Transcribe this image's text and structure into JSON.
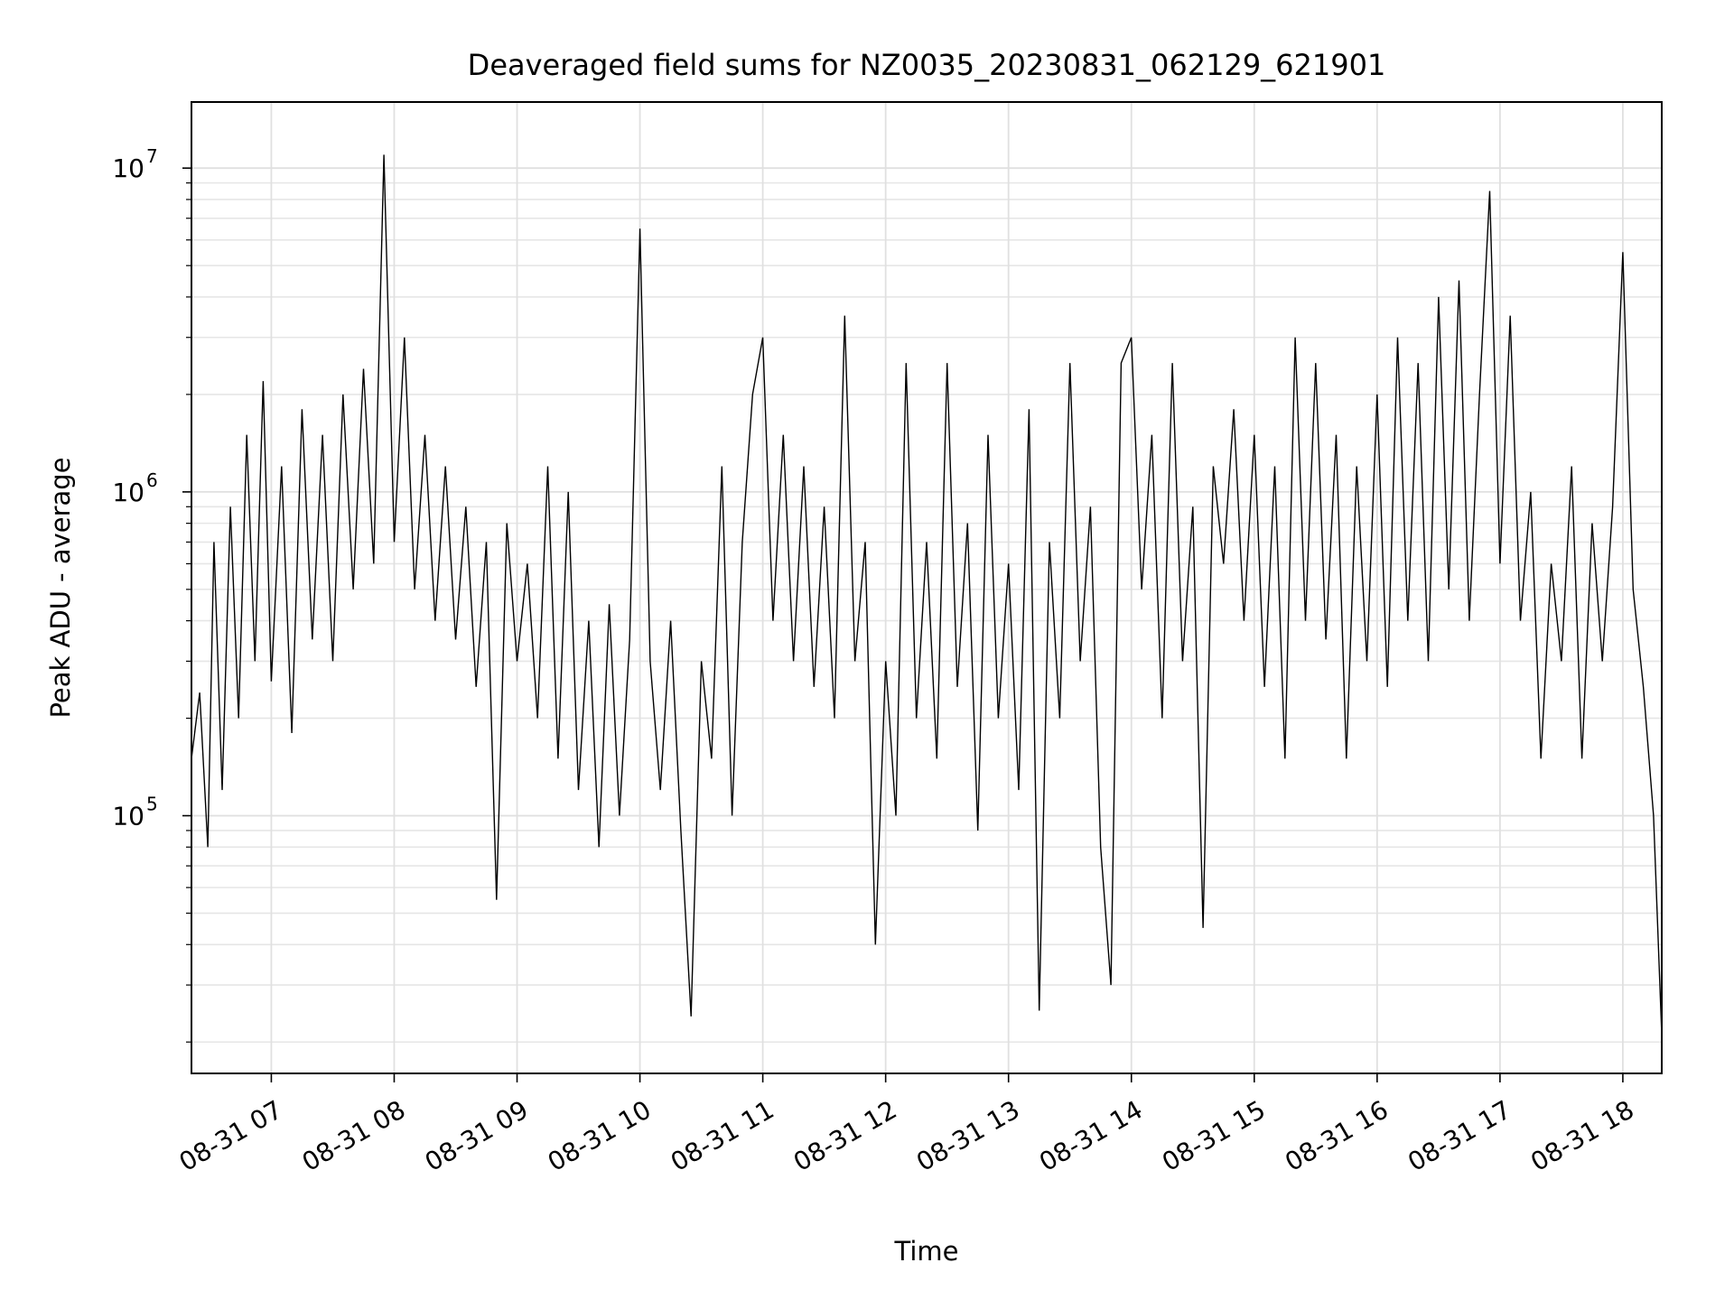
{
  "chart_data": {
    "type": "line",
    "title": "Deaveraged field sums for NZ0035_20230831_062129_621901",
    "xlabel": "Time",
    "ylabel": "Peak ADU - average",
    "yscale": "log",
    "ylim": [
      16000,
      16000000
    ],
    "xlim": [
      "2023-08-31 06:21",
      "2023-08-31 18:19"
    ],
    "grid": true,
    "legend": "none",
    "x_ticks": [
      {
        "x": "2023-08-31 07:00",
        "label": "08-31 07"
      },
      {
        "x": "2023-08-31 08:00",
        "label": "08-31 08"
      },
      {
        "x": "2023-08-31 09:00",
        "label": "08-31 09"
      },
      {
        "x": "2023-08-31 10:00",
        "label": "08-31 10"
      },
      {
        "x": "2023-08-31 11:00",
        "label": "08-31 11"
      },
      {
        "x": "2023-08-31 12:00",
        "label": "08-31 12"
      },
      {
        "x": "2023-08-31 13:00",
        "label": "08-31 13"
      },
      {
        "x": "2023-08-31 14:00",
        "label": "08-31 14"
      },
      {
        "x": "2023-08-31 15:00",
        "label": "08-31 15"
      },
      {
        "x": "2023-08-31 16:00",
        "label": "08-31 16"
      },
      {
        "x": "2023-08-31 17:00",
        "label": "08-31 17"
      },
      {
        "x": "2023-08-31 18:00",
        "label": "08-31 18"
      }
    ],
    "y_ticks": [
      {
        "value": 100000,
        "base": "10",
        "exp": "5"
      },
      {
        "value": 1000000,
        "base": "10",
        "exp": "6"
      },
      {
        "value": 10000000,
        "base": "10",
        "exp": "7"
      }
    ],
    "series": [
      {
        "color": "#000000",
        "points": [
          [
            "2023-08-31 06:21",
            150000
          ],
          [
            "2023-08-31 06:25",
            240000
          ],
          [
            "2023-08-31 06:29",
            80000
          ],
          [
            "2023-08-31 06:32",
            700000
          ],
          [
            "2023-08-31 06:36",
            120000
          ],
          [
            "2023-08-31 06:40",
            900000
          ],
          [
            "2023-08-31 06:44",
            200000
          ],
          [
            "2023-08-31 06:48",
            1500000
          ],
          [
            "2023-08-31 06:52",
            300000
          ],
          [
            "2023-08-31 06:56",
            2200000
          ],
          [
            "2023-08-31 07:00",
            260000
          ],
          [
            "2023-08-31 07:05",
            1200000
          ],
          [
            "2023-08-31 07:10",
            180000
          ],
          [
            "2023-08-31 07:15",
            1800000
          ],
          [
            "2023-08-31 07:20",
            350000
          ],
          [
            "2023-08-31 07:25",
            1500000
          ],
          [
            "2023-08-31 07:30",
            300000
          ],
          [
            "2023-08-31 07:35",
            2000000
          ],
          [
            "2023-08-31 07:40",
            500000
          ],
          [
            "2023-08-31 07:45",
            2400000
          ],
          [
            "2023-08-31 07:50",
            600000
          ],
          [
            "2023-08-31 07:55",
            11000000
          ],
          [
            "2023-08-31 08:00",
            700000
          ],
          [
            "2023-08-31 08:05",
            3000000
          ],
          [
            "2023-08-31 08:10",
            500000
          ],
          [
            "2023-08-31 08:15",
            1500000
          ],
          [
            "2023-08-31 08:20",
            400000
          ],
          [
            "2023-08-31 08:25",
            1200000
          ],
          [
            "2023-08-31 08:30",
            350000
          ],
          [
            "2023-08-31 08:35",
            900000
          ],
          [
            "2023-08-31 08:40",
            250000
          ],
          [
            "2023-08-31 08:45",
            700000
          ],
          [
            "2023-08-31 08:50",
            55000
          ],
          [
            "2023-08-31 08:55",
            800000
          ],
          [
            "2023-08-31 09:00",
            300000
          ],
          [
            "2023-08-31 09:05",
            600000
          ],
          [
            "2023-08-31 09:10",
            200000
          ],
          [
            "2023-08-31 09:15",
            1200000
          ],
          [
            "2023-08-31 09:20",
            150000
          ],
          [
            "2023-08-31 09:25",
            1000000
          ],
          [
            "2023-08-31 09:30",
            120000
          ],
          [
            "2023-08-31 09:35",
            400000
          ],
          [
            "2023-08-31 09:40",
            80000
          ],
          [
            "2023-08-31 09:45",
            450000
          ],
          [
            "2023-08-31 09:50",
            100000
          ],
          [
            "2023-08-31 09:55",
            350000
          ],
          [
            "2023-08-31 10:00",
            6500000
          ],
          [
            "2023-08-31 10:05",
            300000
          ],
          [
            "2023-08-31 10:10",
            120000
          ],
          [
            "2023-08-31 10:15",
            400000
          ],
          [
            "2023-08-31 10:20",
            90000
          ],
          [
            "2023-08-31 10:25",
            24000
          ],
          [
            "2023-08-31 10:30",
            300000
          ],
          [
            "2023-08-31 10:35",
            150000
          ],
          [
            "2023-08-31 10:40",
            1200000
          ],
          [
            "2023-08-31 10:45",
            100000
          ],
          [
            "2023-08-31 10:50",
            700000
          ],
          [
            "2023-08-31 10:55",
            2000000
          ],
          [
            "2023-08-31 11:00",
            3000000
          ],
          [
            "2023-08-31 11:05",
            400000
          ],
          [
            "2023-08-31 11:10",
            1500000
          ],
          [
            "2023-08-31 11:15",
            300000
          ],
          [
            "2023-08-31 11:20",
            1200000
          ],
          [
            "2023-08-31 11:25",
            250000
          ],
          [
            "2023-08-31 11:30",
            900000
          ],
          [
            "2023-08-31 11:35",
            200000
          ],
          [
            "2023-08-31 11:40",
            3500000
          ],
          [
            "2023-08-31 11:45",
            300000
          ],
          [
            "2023-08-31 11:50",
            700000
          ],
          [
            "2023-08-31 11:55",
            40000
          ],
          [
            "2023-08-31 12:00",
            300000
          ],
          [
            "2023-08-31 12:05",
            100000
          ],
          [
            "2023-08-31 12:10",
            2500000
          ],
          [
            "2023-08-31 12:15",
            200000
          ],
          [
            "2023-08-31 12:20",
            700000
          ],
          [
            "2023-08-31 12:25",
            150000
          ],
          [
            "2023-08-31 12:30",
            2500000
          ],
          [
            "2023-08-31 12:35",
            250000
          ],
          [
            "2023-08-31 12:40",
            800000
          ],
          [
            "2023-08-31 12:45",
            90000
          ],
          [
            "2023-08-31 12:50",
            1500000
          ],
          [
            "2023-08-31 12:55",
            200000
          ],
          [
            "2023-08-31 13:00",
            600000
          ],
          [
            "2023-08-31 13:05",
            120000
          ],
          [
            "2023-08-31 13:10",
            1800000
          ],
          [
            "2023-08-31 13:15",
            25000
          ],
          [
            "2023-08-31 13:20",
            700000
          ],
          [
            "2023-08-31 13:25",
            200000
          ],
          [
            "2023-08-31 13:30",
            2500000
          ],
          [
            "2023-08-31 13:35",
            300000
          ],
          [
            "2023-08-31 13:40",
            900000
          ],
          [
            "2023-08-31 13:45",
            80000
          ],
          [
            "2023-08-31 13:50",
            30000
          ],
          [
            "2023-08-31 13:55",
            2500000
          ],
          [
            "2023-08-31 14:00",
            3000000
          ],
          [
            "2023-08-31 14:05",
            500000
          ],
          [
            "2023-08-31 14:10",
            1500000
          ],
          [
            "2023-08-31 14:15",
            200000
          ],
          [
            "2023-08-31 14:20",
            2500000
          ],
          [
            "2023-08-31 14:25",
            300000
          ],
          [
            "2023-08-31 14:30",
            900000
          ],
          [
            "2023-08-31 14:35",
            45000
          ],
          [
            "2023-08-31 14:40",
            1200000
          ],
          [
            "2023-08-31 14:45",
            600000
          ],
          [
            "2023-08-31 14:50",
            1800000
          ],
          [
            "2023-08-31 14:55",
            400000
          ],
          [
            "2023-08-31 15:00",
            1500000
          ],
          [
            "2023-08-31 15:05",
            250000
          ],
          [
            "2023-08-31 15:10",
            1200000
          ],
          [
            "2023-08-31 15:15",
            150000
          ],
          [
            "2023-08-31 15:20",
            3000000
          ],
          [
            "2023-08-31 15:25",
            400000
          ],
          [
            "2023-08-31 15:30",
            2500000
          ],
          [
            "2023-08-31 15:35",
            350000
          ],
          [
            "2023-08-31 15:40",
            1500000
          ],
          [
            "2023-08-31 15:45",
            150000
          ],
          [
            "2023-08-31 15:50",
            1200000
          ],
          [
            "2023-08-31 15:55",
            300000
          ],
          [
            "2023-08-31 16:00",
            2000000
          ],
          [
            "2023-08-31 16:05",
            250000
          ],
          [
            "2023-08-31 16:10",
            3000000
          ],
          [
            "2023-08-31 16:15",
            400000
          ],
          [
            "2023-08-31 16:20",
            2500000
          ],
          [
            "2023-08-31 16:25",
            300000
          ],
          [
            "2023-08-31 16:30",
            4000000
          ],
          [
            "2023-08-31 16:35",
            500000
          ],
          [
            "2023-08-31 16:40",
            4500000
          ],
          [
            "2023-08-31 16:45",
            400000
          ],
          [
            "2023-08-31 16:50",
            2000000
          ],
          [
            "2023-08-31 16:55",
            8500000
          ],
          [
            "2023-08-31 17:00",
            600000
          ],
          [
            "2023-08-31 17:05",
            3500000
          ],
          [
            "2023-08-31 17:10",
            400000
          ],
          [
            "2023-08-31 17:15",
            1000000
          ],
          [
            "2023-08-31 17:20",
            150000
          ],
          [
            "2023-08-31 17:25",
            600000
          ],
          [
            "2023-08-31 17:30",
            300000
          ],
          [
            "2023-08-31 17:35",
            1200000
          ],
          [
            "2023-08-31 17:40",
            150000
          ],
          [
            "2023-08-31 17:45",
            800000
          ],
          [
            "2023-08-31 17:50",
            300000
          ],
          [
            "2023-08-31 17:55",
            900000
          ],
          [
            "2023-08-31 18:00",
            5500000
          ],
          [
            "2023-08-31 18:05",
            500000
          ],
          [
            "2023-08-31 18:10",
            250000
          ],
          [
            "2023-08-31 18:15",
            100000
          ],
          [
            "2023-08-31 18:19",
            21000
          ]
        ]
      }
    ]
  }
}
